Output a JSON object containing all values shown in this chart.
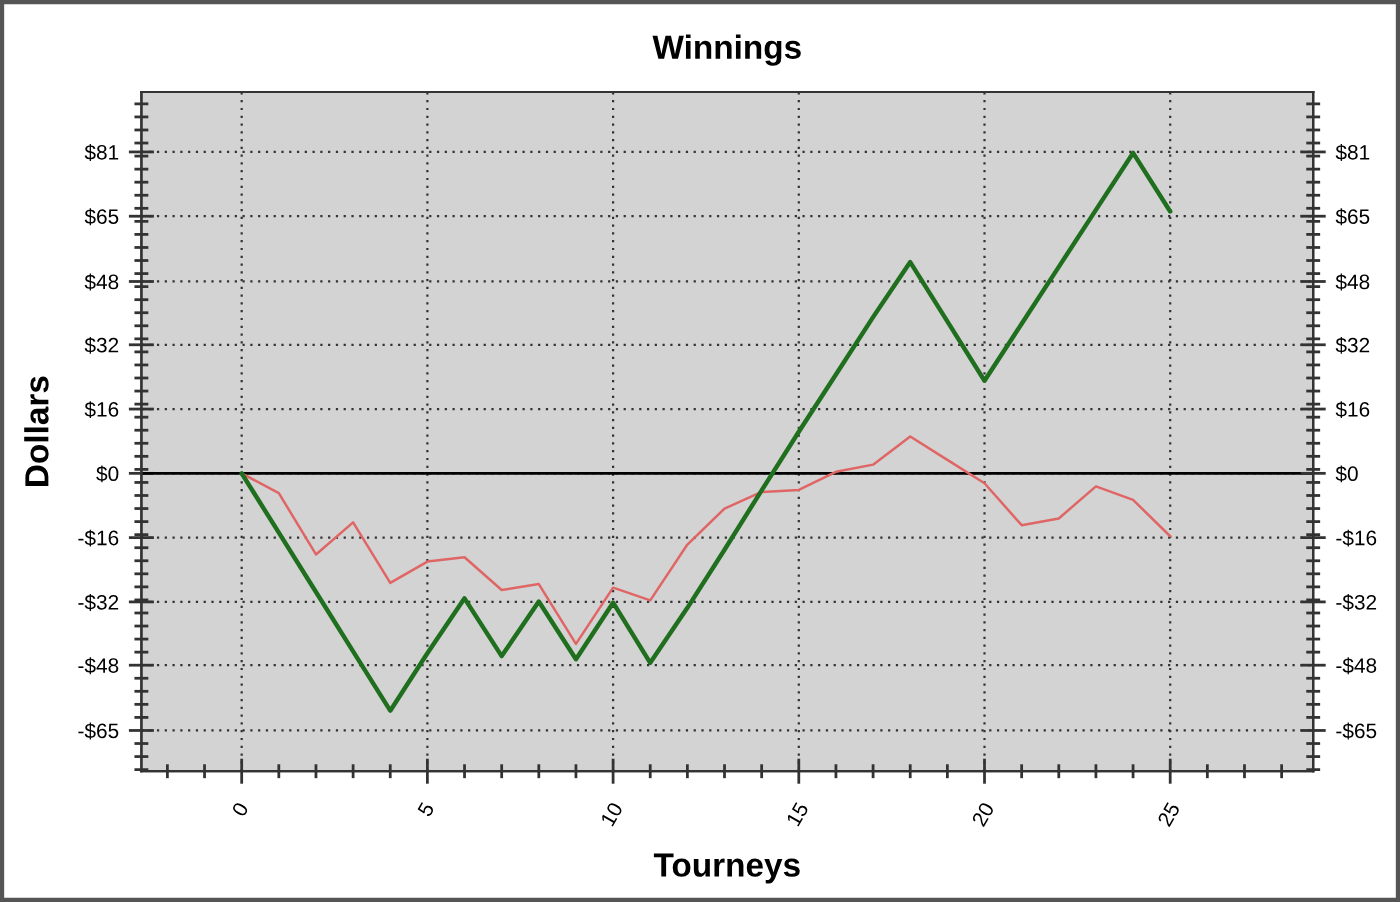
{
  "chart_data": {
    "type": "line",
    "title": "Winnings",
    "xlabel": "Tourneys",
    "ylabel": "Dollars",
    "x": [
      0,
      1,
      2,
      3,
      4,
      5,
      6,
      7,
      8,
      9,
      10,
      11,
      12,
      13,
      14,
      15,
      16,
      17,
      18,
      19,
      20,
      21,
      22,
      23,
      24,
      25
    ],
    "series": [
      {
        "color": "#1f6f1f",
        "values": [
          0,
          -15,
          -30,
          -45,
          -60,
          -45.5,
          -31.6,
          -46.2,
          -32.4,
          -47,
          -32.7,
          -47.9,
          -34,
          -19.3,
          -4.3,
          10.5,
          25,
          39.5,
          53.4,
          38.4,
          23.4,
          37.8,
          52.2,
          66.6,
          81,
          66.2
        ]
      },
      {
        "color": "#e06666",
        "values": [
          0,
          -5,
          -20.5,
          -12.4,
          -27.7,
          -22.3,
          -21.2,
          -29.5,
          -28,
          -43.1,
          -28.9,
          -32.1,
          -18,
          -8.9,
          -4.7,
          -4.2,
          0.4,
          2.2,
          9.3,
          3.4,
          -2.5,
          -13.1,
          -11.4,
          -3.3,
          -6.7,
          -15.9
        ]
      }
    ],
    "xlim": [
      -2.7,
      28.85
    ],
    "xticks": [
      0,
      5,
      10,
      15,
      20,
      25
    ],
    "ylim": [
      -75.3,
      96.4
    ],
    "yticks": [
      {
        "value": -65,
        "label": "-$65"
      },
      {
        "value": -48.5,
        "label": "-$48"
      },
      {
        "value": -32.5,
        "label": "-$32"
      },
      {
        "value": -16.25,
        "label": "-$16"
      },
      {
        "value": 0,
        "label": "$0"
      },
      {
        "value": 16.25,
        "label": "$16"
      },
      {
        "value": 32.5,
        "label": "$32"
      },
      {
        "value": 48.5,
        "label": "$48"
      },
      {
        "value": 65,
        "label": "$65"
      },
      {
        "value": 81.25,
        "label": "$81"
      }
    ],
    "y2lim": [
      -75.3,
      96.4
    ],
    "y2ticks": [
      {
        "value": -65,
        "label": "-$65"
      },
      {
        "value": -48.5,
        "label": "-$48"
      },
      {
        "value": -32.5,
        "label": "-$32"
      },
      {
        "value": -16.25,
        "label": "-$16"
      },
      {
        "value": 0,
        "label": "$0"
      },
      {
        "value": 16.25,
        "label": "$16"
      },
      {
        "value": 32.5,
        "label": "$32"
      },
      {
        "value": 48.5,
        "label": "$48"
      },
      {
        "value": 65,
        "label": "$65"
      },
      {
        "value": 81.25,
        "label": "$81"
      }
    ],
    "ref_lines": [
      {
        "axis": "y",
        "value": 0,
        "color": "#000000"
      }
    ],
    "grid": true
  }
}
